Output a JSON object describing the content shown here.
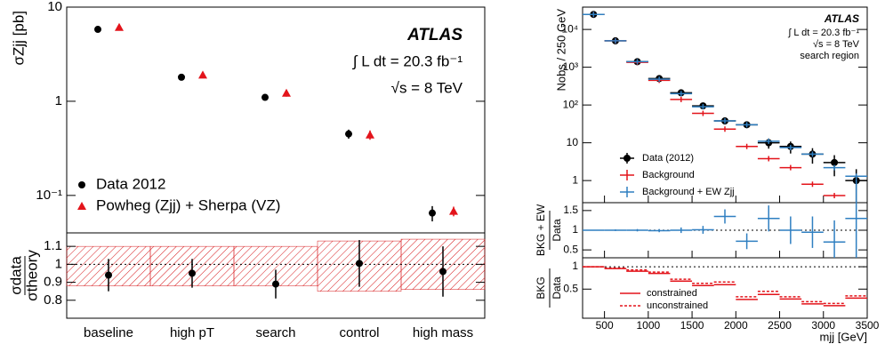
{
  "chart_data": [
    {
      "type": "scatter",
      "ylabel": "σZjj [pb]",
      "log": true,
      "categories": [
        "baseline",
        "high pT",
        "search",
        "control",
        "high mass"
      ],
      "series": [
        {
          "name": "Data 2012",
          "color": "#000000",
          "marker": "circle",
          "values": [
            5.8,
            1.8,
            1.1,
            0.45,
            0.065
          ],
          "errors": [
            0.35,
            0.12,
            0.08,
            0.05,
            0.012
          ]
        },
        {
          "name": "Powheg (Zjj) + Sherpa (VZ)",
          "color": "#e3141b",
          "marker": "triangle",
          "values": [
            6.1,
            1.9,
            1.22,
            0.44,
            0.068
          ],
          "errors": [
            0.4,
            0.14,
            0.1,
            0.05,
            0.008
          ]
        }
      ],
      "ylim": [
        0.04,
        10
      ],
      "yticks": [
        {
          "value": 0.1,
          "label": "10⁻¹"
        },
        1,
        10
      ],
      "annotations": [
        "ATLAS",
        "∫ L dt = 20.3 fb⁻¹",
        "√s = 8 TeV"
      ],
      "legend": "lower left"
    },
    {
      "type": "ratio",
      "ylabel": {
        "numerator": "σdata",
        "denominator": "σtheory"
      },
      "values": [
        0.94,
        0.95,
        0.89,
        1.005,
        0.96
      ],
      "errors": [
        0.09,
        0.08,
        0.08,
        0.13,
        0.14
      ],
      "band_low": [
        0.88,
        0.88,
        0.88,
        0.85,
        0.86
      ],
      "band_high": [
        1.1,
        1.1,
        1.1,
        1.13,
        1.14
      ],
      "band_color": "#d7191c",
      "reference": 1,
      "ylim": [
        0.7,
        1.175
      ],
      "yticks": [
        0.8,
        0.9,
        1,
        1.1
      ]
    },
    {
      "type": "histogram",
      "ylabel": "Nobs / 250 GeV",
      "log": true,
      "bins": [
        250,
        500,
        750,
        1000,
        1250,
        1500,
        1750,
        2000,
        2250,
        2500,
        2750,
        3000,
        3250,
        3500
      ],
      "series": [
        {
          "name": "Data (2012)",
          "color": "#000000",
          "marker": "circle",
          "values": [
            25000,
            5000,
            1400,
            500,
            210,
            95,
            38,
            30,
            10,
            8,
            5,
            3,
            1
          ],
          "errors": [
            160,
            70,
            37,
            22,
            14,
            10,
            6,
            5.5,
            3,
            2.8,
            2.2,
            1.7,
            1
          ]
        },
        {
          "name": "Background",
          "color": "#e3141b",
          "marker": "cross",
          "values": [
            25000,
            5000,
            1350,
            450,
            140,
            60,
            23,
            8,
            3.8,
            2.2,
            0.8,
            0.4,
            null
          ]
        },
        {
          "name": "Background + EW Zjj",
          "color": "#2f7fc1",
          "marker": "cross",
          "values": [
            25000,
            5000,
            1400,
            480,
            200,
            90,
            38,
            30,
            11,
            7.5,
            5,
            2.2,
            1.3
          ]
        }
      ],
      "xlim": [
        250,
        3500
      ],
      "xticks": [
        500,
        1000,
        1500,
        2000,
        2500,
        3000,
        3500
      ],
      "ylim": [
        0.26,
        39000
      ],
      "yticks": [
        1,
        10,
        {
          "value": 100,
          "label": "10²"
        },
        {
          "value": 1000,
          "label": "10³"
        },
        {
          "value": 10000,
          "label": "10⁴"
        }
      ],
      "annotations": [
        "ATLAS",
        "∫ L dt = 20.3 fb⁻¹",
        "√s = 8 TeV",
        "search region"
      ],
      "legend": "lower left"
    },
    {
      "type": "ratio",
      "ylabel": {
        "numerator": "BKG + EW",
        "denominator": "Data"
      },
      "reference": 1,
      "series": [
        {
          "color": "#2f7fc1",
          "style": "solid",
          "values": [
            1,
            1,
            1,
            0.99,
            1,
            1.01,
            1.35,
            0.72,
            1.3,
            1.0,
            0.95,
            0.7,
            1.3
          ],
          "errors": [
            0.01,
            0.02,
            0.03,
            0.04,
            0.07,
            0.1,
            0.18,
            0.2,
            0.33,
            0.35,
            0.4,
            0.55,
            1.0
          ]
        }
      ],
      "ylim": [
        0.3,
        1.7
      ],
      "yticks": [
        0.5,
        1,
        1.5
      ]
    },
    {
      "type": "ratio",
      "ylabel": {
        "numerator": "BKG",
        "denominator": "Data"
      },
      "reference": 1,
      "xlabel": "mjj [GeV]",
      "series": [
        {
          "name": "constrained",
          "color": "#e3141b",
          "style": "solid",
          "values": [
            1.0,
            0.96,
            0.9,
            0.85,
            0.68,
            0.58,
            0.6,
            0.27,
            0.38,
            0.28,
            0.17,
            0.13,
            0.3
          ]
        },
        {
          "name": "unconstrained",
          "color": "#e3141b",
          "style": "dashed",
          "values": [
            1.0,
            0.97,
            0.93,
            0.88,
            0.72,
            0.63,
            0.66,
            0.33,
            0.45,
            0.33,
            0.22,
            0.18,
            0.35
          ]
        }
      ],
      "ylim": [
        -0.15,
        1.2
      ],
      "yticks": [
        0.5,
        1
      ]
    }
  ]
}
